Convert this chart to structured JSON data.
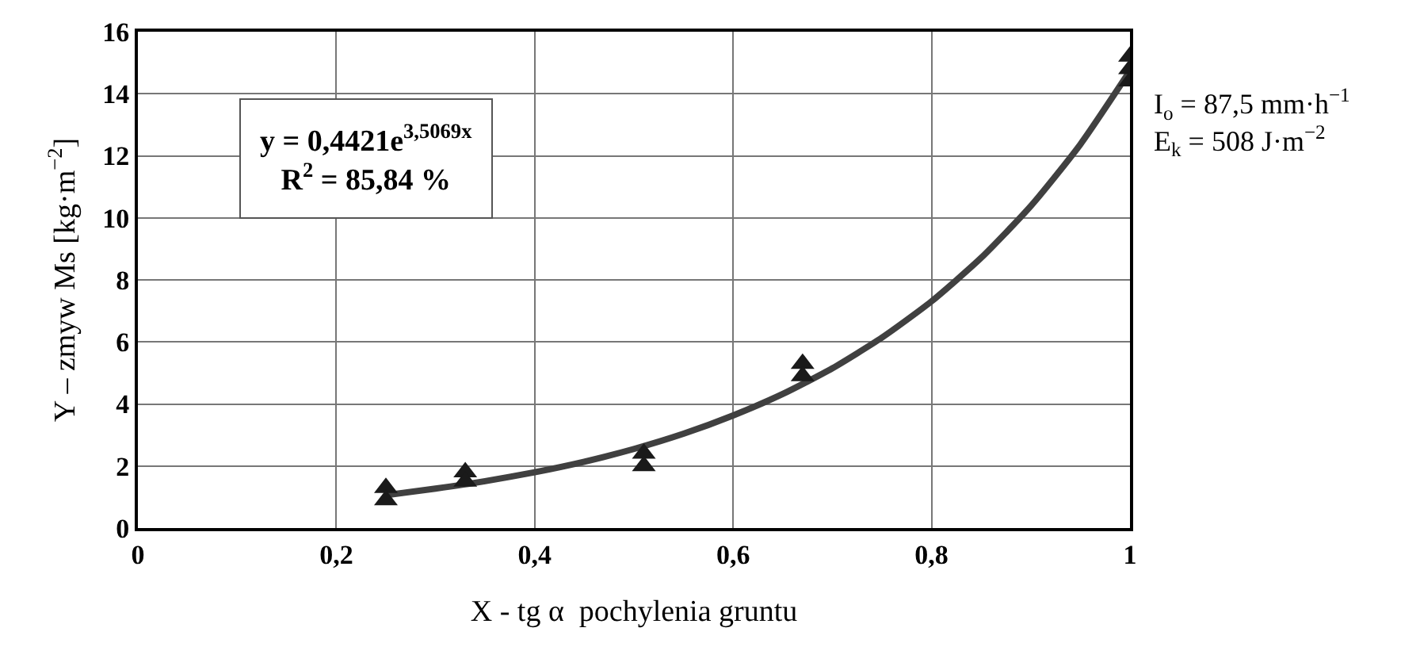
{
  "chart_data": {
    "type": "scatter",
    "xlabel": "X - tg α  pochylenia gruntu",
    "ylabel": "Y – zmyw Ms [kg·m$^{−2}$]",
    "series": [
      {
        "type": "line",
        "color": "#404040",
        "marker": "none",
        "x": [
          0.25,
          0.3,
          0.35,
          0.4,
          0.45,
          0.5,
          0.55,
          0.6,
          0.65,
          0.7,
          0.75,
          0.8,
          0.85,
          0.9,
          0.95,
          1
        ],
        "values": [
          1.06,
          1.27,
          1.51,
          1.8,
          2.14,
          2.55,
          3.04,
          3.63,
          4.32,
          5.15,
          6.14,
          7.31,
          8.71,
          10.38,
          12.37,
          14.74
        ]
      },
      {
        "color": "#1a1a1a",
        "marker": "triangle",
        "x": [
          0.25,
          0.25,
          0.33,
          0.33,
          0.51,
          0.51,
          0.67,
          0.67,
          1,
          1,
          1
        ],
        "values": [
          1.3,
          0.9,
          1.8,
          1.5,
          2.4,
          2.0,
          5.3,
          4.9,
          15.2,
          14.8,
          14.4
        ]
      }
    ],
    "xlim": [
      0,
      1
    ],
    "xticks": [
      0,
      {
        "value": 0.2,
        "label": "0,2"
      },
      {
        "value": 0.4,
        "label": "0,4"
      },
      {
        "value": 0.6,
        "label": "0,6"
      },
      {
        "value": 0.8,
        "label": "0,8"
      },
      1
    ],
    "ylim": [
      0,
      16
    ],
    "yticks": [
      0,
      2,
      4,
      6,
      8,
      10,
      12,
      14,
      16
    ],
    "annotations": [
      "y = 0,4421e$^{3,5069x}$",
      "R$^{2}$ = 85,84 %",
      "I$_{o}$ = 87,5 mm·h$^{−1}$",
      "E$_{k}$ = 508 J·m$^{−2}$"
    ],
    "grid": true
  }
}
